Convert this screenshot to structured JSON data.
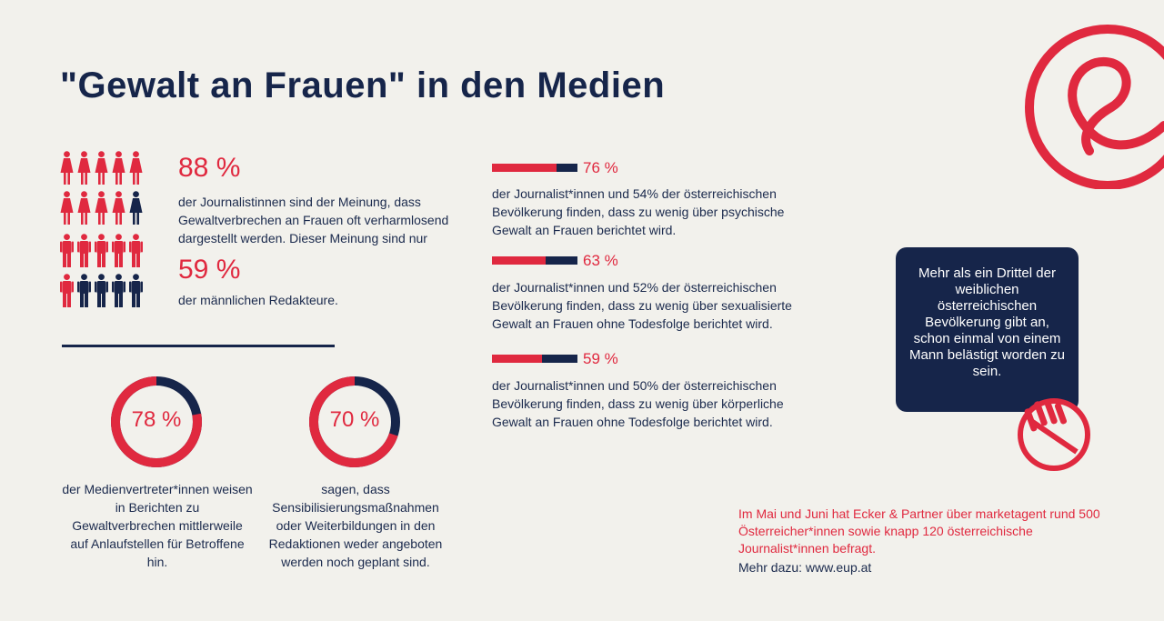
{
  "title": "\"Gewalt an Frauen\" in den Medien",
  "colors": {
    "accent": "#e0293f",
    "navy": "#16254a",
    "background": "#f2f1ec"
  },
  "female_stat": {
    "percent": "88 %",
    "text": "der Journalistinnen sind der Meinung, dass Gewaltverbrechen an Frauen oft verharmlosend dargestellt werden. Dieser Meinung sind nur",
    "icons_total": 10,
    "icons_highlighted": 9
  },
  "male_stat": {
    "percent": "59 %",
    "text": "der männlichen Redakteure.",
    "icons_total": 10,
    "icons_highlighted": 6
  },
  "donuts": [
    {
      "percent_label": "78 %",
      "value": 0.78,
      "text": "der Medienvertreter*innen weisen in Berichten zu Gewaltverbrechen mittlerweile auf Anlaufstellen für Betroffene hin."
    },
    {
      "percent_label": "70 %",
      "value": 0.7,
      "text": "sagen, dass Sensibilisierungsmaßnahmen oder Weiterbildungen in den Redaktionen weder angeboten werden noch geplant sind."
    }
  ],
  "bars": [
    {
      "percent_label": "76 %",
      "value": 0.76,
      "text": "der Journalist*innen und 54% der österreichischen Bevölkerung finden, dass zu wenig über psychische Gewalt an Frauen berichtet wird."
    },
    {
      "percent_label": "63 %",
      "value": 0.63,
      "text": "der Journalist*innen und 52% der österreichischen Bevölkerung finden, dass zu wenig über sexualisierte Gewalt an Frauen ohne Todesfolge berichtet wird."
    },
    {
      "percent_label": "59 %",
      "value": 0.59,
      "text": "der Journalist*innen und 50% der österreichischen Bevölkerung finden, dass zu wenig über körperliche Gewalt an Frauen ohne Todesfolge berichtet wird."
    }
  ],
  "infobox": {
    "text": "Mehr als ein Drittel der weiblichen österreichischen Bevölkerung gibt an, schon einmal von einem Mann belästigt worden zu sein."
  },
  "source": {
    "text": "Im Mai und Juni hat Ecker & Partner über marketagent rund 500 Österreicher*innen sowie knapp 120 österreichische Journalist*innen befragt.",
    "more": "Mehr dazu: www.eup.at"
  },
  "icons": {
    "logo": "ampersand-logo-icon",
    "stop": "stop-hand-icon"
  }
}
